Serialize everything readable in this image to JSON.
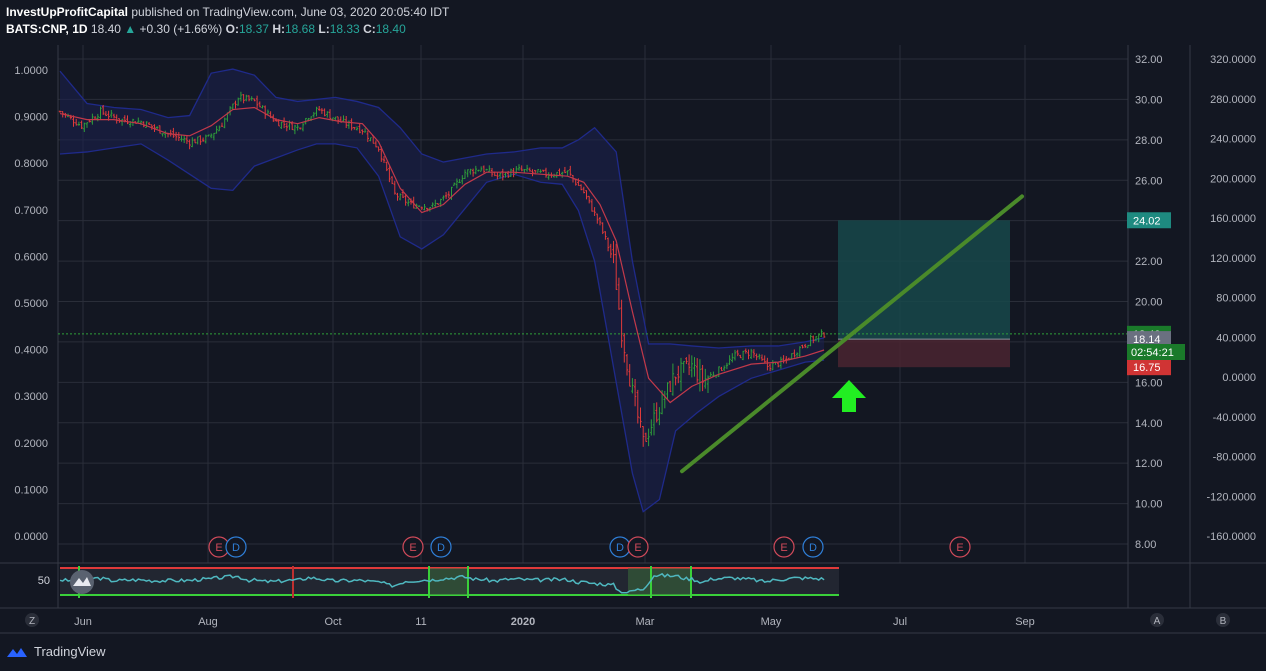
{
  "header": {
    "publisher": "InvestUpProfitCapital",
    "published_text": "published on TradingView.com, June 03, 2020 20:05:40 IDT",
    "symbol": "BATS:CNP, 1D",
    "last": "18.40",
    "change": "+0.30 (+1.66%)",
    "o_label": "O:",
    "o": "18.37",
    "h_label": "H:",
    "h": "18.68",
    "l_label": "L:",
    "l": "18.33",
    "c_label": "C:",
    "c": "18.40"
  },
  "footer": {
    "brand": "TradingView"
  },
  "colors": {
    "background": "#131722",
    "up": "#26a69a",
    "bull_candle": "#2e9e3a",
    "bear_candle": "#e03a3a",
    "bands": "#1f2a8a",
    "ma": "#c2394a",
    "trendline": "#4a8a2a",
    "arrow": "#22ee22",
    "target_zone": "#17484a",
    "stop_zone": "#4a2530",
    "rsi_line": "#4fb8c0"
  },
  "chart_data": {
    "type": "candlestick",
    "price_axis": {
      "ticks": [
        "32.00",
        "30.00",
        "28.00",
        "26.00",
        "24.00",
        "22.00",
        "20.00",
        "18.00",
        "16.00",
        "14.00",
        "12.00",
        "10.00",
        "8.00"
      ],
      "range": [
        7.2,
        32.8
      ]
    },
    "left_axis": {
      "ticks": [
        "1.0000",
        "0.9000",
        "0.8000",
        "0.7000",
        "0.6000",
        "0.5000",
        "0.4000",
        "0.3000",
        "0.2000",
        "0.1000",
        "0.0000"
      ]
    },
    "far_axis": {
      "ticks": [
        "320.0000",
        "280.0000",
        "240.0000",
        "200.0000",
        "160.0000",
        "120.0000",
        "80.0000",
        "40.0000",
        "0.0000",
        "-40.0000",
        "-80.0000",
        "-120.0000",
        "-160.0000"
      ]
    },
    "x_ticks": [
      "Jun",
      "Aug",
      "Oct",
      "11",
      "2020",
      "Mar",
      "May",
      "Jul",
      "Sep"
    ],
    "close_path": [
      [
        0,
        29.4
      ],
      [
        8,
        28.7
      ],
      [
        15,
        29.4
      ],
      [
        22,
        29.0
      ],
      [
        30,
        28.9
      ],
      [
        40,
        28.3
      ],
      [
        48,
        27.9
      ],
      [
        55,
        28.1
      ],
      [
        60,
        28.8
      ],
      [
        66,
        30.1
      ],
      [
        72,
        29.9
      ],
      [
        80,
        28.9
      ],
      [
        88,
        28.6
      ],
      [
        92,
        29.2
      ],
      [
        96,
        29.5
      ],
      [
        104,
        28.9
      ],
      [
        112,
        28.5
      ],
      [
        118,
        27.6
      ],
      [
        124,
        25.3
      ],
      [
        130,
        24.8
      ],
      [
        138,
        24.7
      ],
      [
        144,
        25.3
      ],
      [
        150,
        26.4
      ],
      [
        156,
        26.6
      ],
      [
        162,
        26.2
      ],
      [
        170,
        26.5
      ],
      [
        180,
        26.3
      ],
      [
        188,
        26.4
      ],
      [
        194,
        25.4
      ],
      [
        200,
        23.8
      ],
      [
        205,
        22.0
      ],
      [
        208,
        18.5
      ],
      [
        212,
        15.5
      ],
      [
        216,
        13.0
      ],
      [
        222,
        14.8
      ],
      [
        228,
        16.4
      ],
      [
        234,
        16.8
      ],
      [
        238,
        16.1
      ],
      [
        244,
        16.6
      ],
      [
        250,
        17.3
      ],
      [
        256,
        17.5
      ],
      [
        262,
        16.8
      ],
      [
        268,
        17.0
      ],
      [
        274,
        17.7
      ],
      [
        278,
        18.1
      ],
      [
        283,
        18.4
      ]
    ],
    "band_upper": [
      [
        0,
        31.4
      ],
      [
        10,
        29.8
      ],
      [
        20,
        29.6
      ],
      [
        30,
        29.5
      ],
      [
        40,
        29.1
      ],
      [
        48,
        29.2
      ],
      [
        56,
        31.3
      ],
      [
        64,
        31.5
      ],
      [
        72,
        31.2
      ],
      [
        80,
        30.1
      ],
      [
        88,
        29.9
      ],
      [
        95,
        30.0
      ],
      [
        102,
        30.1
      ],
      [
        110,
        29.9
      ],
      [
        118,
        29.6
      ],
      [
        126,
        28.6
      ],
      [
        134,
        27.3
      ],
      [
        142,
        26.9
      ],
      [
        150,
        27.1
      ],
      [
        158,
        27.3
      ],
      [
        168,
        27.4
      ],
      [
        178,
        27.6
      ],
      [
        186,
        27.6
      ],
      [
        192,
        28.0
      ],
      [
        198,
        28.6
      ],
      [
        206,
        27.4
      ],
      [
        212,
        22.0
      ],
      [
        218,
        17.9
      ],
      [
        226,
        17.9
      ],
      [
        234,
        17.8
      ],
      [
        244,
        17.7
      ],
      [
        256,
        17.8
      ],
      [
        266,
        17.8
      ],
      [
        276,
        18.0
      ],
      [
        283,
        18.2
      ]
    ],
    "band_lower": [
      [
        0,
        27.3
      ],
      [
        10,
        27.4
      ],
      [
        20,
        27.6
      ],
      [
        30,
        27.8
      ],
      [
        40,
        27.0
      ],
      [
        48,
        26.3
      ],
      [
        56,
        25.6
      ],
      [
        64,
        25.5
      ],
      [
        72,
        26.7
      ],
      [
        80,
        27.1
      ],
      [
        88,
        27.5
      ],
      [
        95,
        27.8
      ],
      [
        102,
        27.8
      ],
      [
        110,
        27.6
      ],
      [
        118,
        26.2
      ],
      [
        126,
        23.2
      ],
      [
        134,
        22.6
      ],
      [
        142,
        23.3
      ],
      [
        150,
        24.6
      ],
      [
        158,
        25.9
      ],
      [
        168,
        26.3
      ],
      [
        178,
        25.9
      ],
      [
        186,
        25.8
      ],
      [
        192,
        24.5
      ],
      [
        198,
        22.0
      ],
      [
        206,
        16.0
      ],
      [
        212,
        11.5
      ],
      [
        216,
        9.6
      ],
      [
        222,
        10.2
      ],
      [
        228,
        13.6
      ],
      [
        236,
        14.5
      ],
      [
        244,
        15.3
      ],
      [
        256,
        16.2
      ],
      [
        266,
        16.6
      ],
      [
        276,
        17.0
      ],
      [
        283,
        17.1
      ]
    ],
    "ma_path": [
      [
        0,
        29.3
      ],
      [
        10,
        29.0
      ],
      [
        20,
        29.0
      ],
      [
        30,
        28.8
      ],
      [
        40,
        28.3
      ],
      [
        48,
        28.2
      ],
      [
        56,
        28.7
      ],
      [
        64,
        29.5
      ],
      [
        72,
        29.6
      ],
      [
        80,
        29.0
      ],
      [
        88,
        28.8
      ],
      [
        96,
        29.1
      ],
      [
        104,
        28.9
      ],
      [
        112,
        28.8
      ],
      [
        118,
        27.9
      ],
      [
        126,
        25.6
      ],
      [
        134,
        24.4
      ],
      [
        142,
        24.8
      ],
      [
        150,
        25.8
      ],
      [
        158,
        26.4
      ],
      [
        168,
        26.4
      ],
      [
        178,
        26.3
      ],
      [
        188,
        26.2
      ],
      [
        194,
        25.9
      ],
      [
        200,
        24.8
      ],
      [
        206,
        23.0
      ],
      [
        212,
        19.5
      ],
      [
        218,
        16.2
      ],
      [
        226,
        15.0
      ],
      [
        234,
        15.8
      ],
      [
        244,
        16.4
      ],
      [
        256,
        16.9
      ],
      [
        266,
        17.0
      ],
      [
        276,
        17.3
      ],
      [
        283,
        17.6
      ]
    ],
    "price_labels": [
      {
        "value": 24.02,
        "text": "24.02",
        "color": "#1e8a80"
      },
      {
        "value": 18.4,
        "text": "18.40",
        "color": "#1a7a2a"
      },
      {
        "value": 18.14,
        "text": "18.14",
        "color": "#6a7080"
      },
      {
        "value": 16.75,
        "text": "16.75",
        "color": "#d03434"
      }
    ],
    "countdown": "02:54:21",
    "long_position": {
      "entry": 18.14,
      "target": 24.02,
      "stop": 16.75
    },
    "trendline": [
      [
        11.6
      ],
      [
        25.2
      ]
    ],
    "events": [
      "E",
      "D",
      "E",
      "D",
      "D",
      "E",
      "E",
      "D",
      "E"
    ],
    "rsi": {
      "label": "50"
    },
    "corner_buttons": [
      "Z",
      "A",
      "B"
    ]
  }
}
